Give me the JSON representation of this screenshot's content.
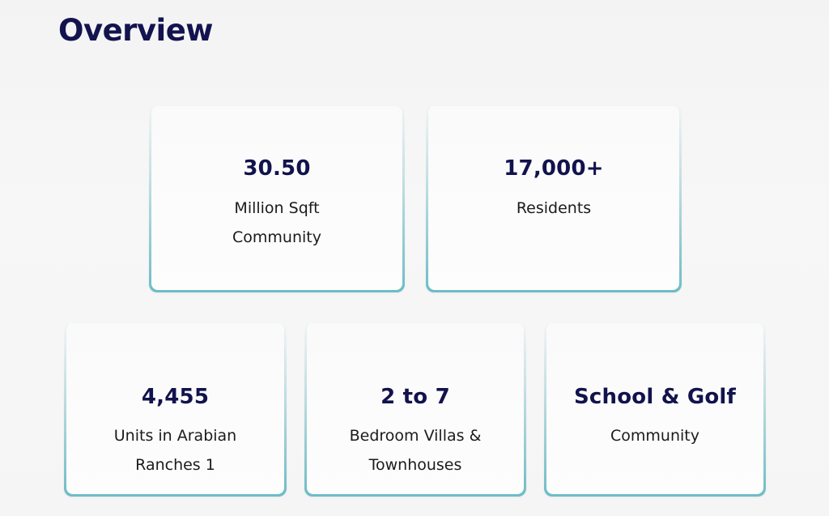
{
  "section": {
    "title": "Overview"
  },
  "cards": [
    {
      "value": "30.50",
      "label": "Million Sqft\nCommunity"
    },
    {
      "value": "17,000+",
      "label": "Residents"
    },
    {
      "value": "4,455",
      "label": "Units in Arabian\nRanches 1"
    },
    {
      "value": "2 to 7",
      "label": "Bedroom Villas &\nTownhouses"
    },
    {
      "value": "School & Golf",
      "label": "Community"
    }
  ],
  "colors": {
    "title": "#13134f",
    "value": "#12124d",
    "card_border": "#6dbcc5",
    "background": "#f5f5f5"
  }
}
